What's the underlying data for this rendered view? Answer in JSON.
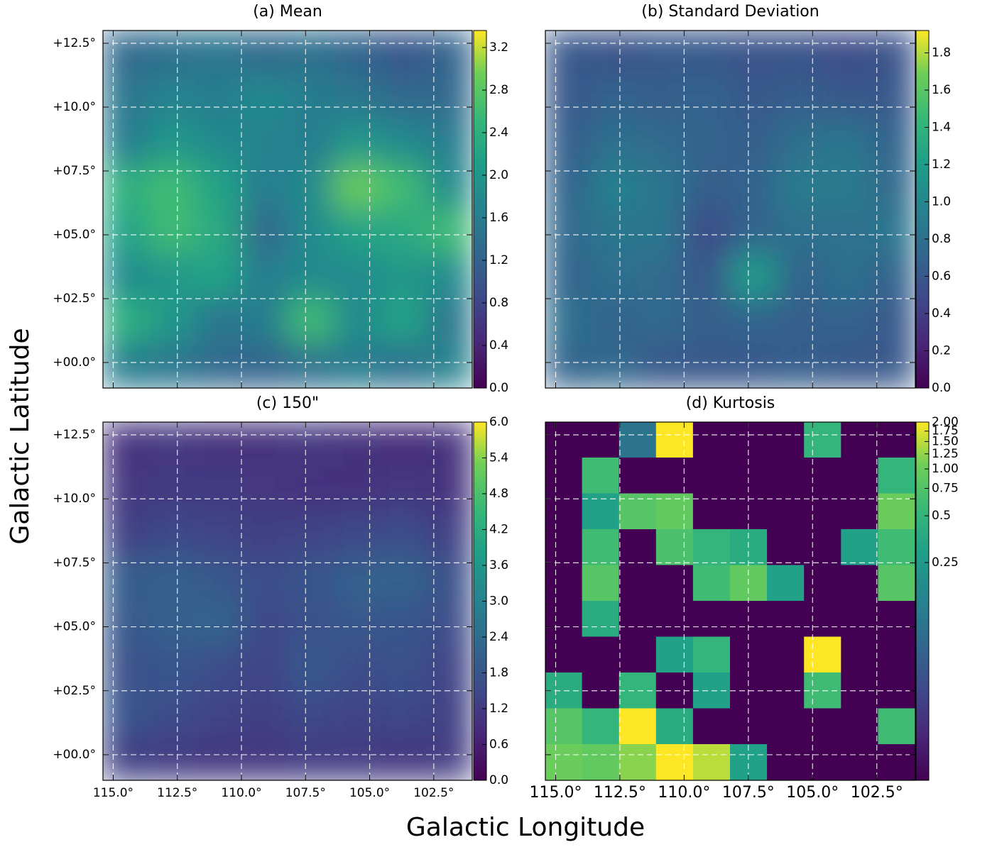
{
  "x_label": "Galactic Longitude",
  "y_label": "Galactic Latitude",
  "chart_data": [
    {
      "type": "heatmap",
      "title": "(a) Mean",
      "colormap": "viridis",
      "color_scale": "linear",
      "xlim": [
        115.4,
        101.0
      ],
      "ylim": [
        -1.0,
        13.0
      ],
      "xticks": [
        115.0,
        112.5,
        110.0,
        107.5,
        105.0,
        102.5
      ],
      "yticks": [
        {
          "value": 12.5,
          "label": "+12.5°"
        },
        {
          "value": 10.0,
          "label": "+10.0°"
        },
        {
          "value": 7.5,
          "label": "+07.5°"
        },
        {
          "value": 5.0,
          "label": "+05.0°"
        },
        {
          "value": 2.5,
          "label": "+02.5°"
        },
        {
          "value": 0.0,
          "label": "+00.0°"
        }
      ],
      "clim": [
        0.0,
        3.36
      ],
      "cticks": [
        {
          "value": 0.0,
          "label": "0.0"
        },
        0.4,
        0.8,
        1.2,
        1.6,
        {
          "value": 2.0,
          "label": "2.0"
        },
        2.4,
        2.8,
        3.2
      ],
      "z": [
        [
          1.3,
          1.4,
          1.5,
          1.3,
          1.4,
          1.2,
          1.0,
          1.2
        ],
        [
          1.5,
          1.7,
          1.6,
          1.8,
          1.6,
          1.5,
          1.3,
          1.3
        ],
        [
          1.6,
          2.0,
          1.8,
          1.7,
          1.6,
          2.0,
          1.8,
          1.6
        ],
        [
          2.4,
          2.6,
          2.2,
          1.6,
          1.8,
          2.9,
          2.6,
          1.8
        ],
        [
          2.2,
          2.6,
          2.3,
          1.3,
          1.8,
          2.2,
          2.3,
          2.6
        ],
        [
          1.8,
          2.0,
          2.2,
          1.6,
          1.8,
          1.8,
          2.0,
          1.8
        ],
        [
          2.4,
          2.0,
          1.5,
          1.6,
          2.6,
          1.8,
          2.2,
          1.5
        ],
        [
          1.6,
          1.5,
          1.3,
          1.2,
          1.4,
          1.6,
          1.4,
          1.7
        ]
      ]
    },
    {
      "type": "heatmap",
      "title": "(b) Standard Deviation",
      "colormap": "viridis",
      "color_scale": "linear",
      "xlim": [
        115.4,
        101.0
      ],
      "ylim": [
        -1.0,
        13.0
      ],
      "xticks": [
        115.0,
        112.5,
        110.0,
        107.5,
        105.0,
        102.5
      ],
      "yticks": [
        12.5,
        10.0,
        7.5,
        5.0,
        2.5,
        0.0
      ],
      "clim": [
        0.0,
        1.92
      ],
      "cticks": [
        {
          "value": 0.0,
          "label": "0.0"
        },
        0.2,
        0.4,
        0.6,
        0.8,
        {
          "value": 1.0,
          "label": "1.0"
        },
        1.2,
        1.4,
        1.6,
        1.8
      ],
      "z": [
        [
          0.6,
          0.55,
          0.6,
          0.6,
          0.55,
          0.55,
          0.5,
          0.55
        ],
        [
          0.6,
          0.7,
          0.65,
          0.7,
          0.6,
          0.65,
          0.6,
          0.6
        ],
        [
          0.65,
          0.8,
          0.75,
          0.7,
          0.65,
          0.8,
          0.85,
          0.7
        ],
        [
          0.7,
          0.95,
          0.85,
          0.65,
          0.7,
          0.9,
          0.9,
          0.75
        ],
        [
          0.75,
          0.85,
          0.85,
          0.5,
          0.7,
          0.8,
          0.8,
          0.85
        ],
        [
          0.7,
          0.8,
          0.75,
          0.6,
          1.2,
          0.7,
          0.8,
          0.7
        ],
        [
          0.8,
          0.7,
          0.75,
          0.65,
          0.7,
          0.65,
          0.7,
          0.6
        ],
        [
          0.7,
          0.75,
          0.6,
          0.6,
          0.6,
          0.65,
          0.6,
          0.6
        ]
      ]
    },
    {
      "type": "heatmap",
      "title": "(c) 150\"",
      "colormap": "viridis",
      "color_scale": "linear",
      "xlim": [
        115.4,
        101.0
      ],
      "ylim": [
        -1.0,
        13.0
      ],
      "xticks": [
        {
          "value": 115.0,
          "label": "115.0°"
        },
        {
          "value": 112.5,
          "label": "112.5°"
        },
        {
          "value": 110.0,
          "label": "110.0°"
        },
        {
          "value": 107.5,
          "label": "107.5°"
        },
        {
          "value": 105.0,
          "label": "105.0°"
        },
        {
          "value": 102.5,
          "label": "102.5°"
        }
      ],
      "yticks": [
        {
          "value": 12.5,
          "label": "+12.5°"
        },
        {
          "value": 10.0,
          "label": "+10.0°"
        },
        {
          "value": 7.5,
          "label": "+07.5°"
        },
        {
          "value": 5.0,
          "label": "+05.0°"
        },
        {
          "value": 2.5,
          "label": "+02.5°"
        },
        {
          "value": 0.0,
          "label": "+00.0°"
        }
      ],
      "clim": [
        0.0,
        6.0
      ],
      "cticks": [
        {
          "value": 0.0,
          "label": "0.0"
        },
        0.6,
        1.2,
        1.8,
        2.4,
        {
          "value": 3.0,
          "label": "3.0"
        },
        3.6,
        4.2,
        4.8,
        5.4,
        {
          "value": 6.0,
          "label": "6.0"
        }
      ],
      "z": [
        [
          1.0,
          1.1,
          1.0,
          1.0,
          1.1,
          1.0,
          0.9,
          1.0
        ],
        [
          1.1,
          1.2,
          1.2,
          1.1,
          1.0,
          1.0,
          1.1,
          1.0
        ],
        [
          1.3,
          1.5,
          1.4,
          1.3,
          1.4,
          1.5,
          1.6,
          1.3
        ],
        [
          2.0,
          2.1,
          1.9,
          1.6,
          1.8,
          2.1,
          2.2,
          1.7
        ],
        [
          1.9,
          2.1,
          2.2,
          1.5,
          1.7,
          1.9,
          1.8,
          1.6
        ],
        [
          1.7,
          1.8,
          1.6,
          1.4,
          1.9,
          1.6,
          1.7,
          1.4
        ],
        [
          1.8,
          1.6,
          1.4,
          1.3,
          1.5,
          1.4,
          1.5,
          1.3
        ],
        [
          1.3,
          1.2,
          1.1,
          1.1,
          1.2,
          1.2,
          1.1,
          1.2
        ]
      ]
    },
    {
      "type": "heatmap",
      "title": "(d) Kurtosis",
      "colormap": "viridis",
      "color_scale": "asinh",
      "asinh_a": 0.02,
      "xlim": [
        115.4,
        101.0
      ],
      "ylim": [
        -1.0,
        13.0
      ],
      "xticks": [
        {
          "value": 115.0,
          "label": "115.0°"
        },
        {
          "value": 112.5,
          "label": "112.5°"
        },
        {
          "value": 110.0,
          "label": "110.0°"
        },
        {
          "value": 107.5,
          "label": "107.5°"
        },
        {
          "value": 105.0,
          "label": "105.0°"
        },
        {
          "value": 102.5,
          "label": "102.5°"
        }
      ],
      "yticks": [
        12.5,
        10.0,
        7.5,
        5.0,
        2.5,
        0.0
      ],
      "clim": [
        0.0,
        2.0
      ],
      "cticks": [
        0.25,
        0.5,
        {
          "value": 0.75,
          "label": "0.75"
        },
        {
          "value": 1.0,
          "label": "1.00"
        },
        1.25,
        {
          "value": 1.5,
          "label": "1.50"
        },
        1.75,
        {
          "value": 2.0,
          "label": "2.00"
        }
      ],
      "z": [
        [
          0,
          0,
          0.1,
          2,
          0,
          0,
          0,
          0.5,
          0,
          0
        ],
        [
          0,
          0.6,
          0,
          0,
          0,
          0,
          0,
          0,
          0,
          0.5
        ],
        [
          0,
          0.3,
          0.8,
          0.9,
          0,
          0,
          0,
          0,
          0,
          1.0
        ],
        [
          0,
          0.6,
          0,
          0.7,
          0.5,
          0.4,
          0,
          0,
          0.3,
          0.6
        ],
        [
          0,
          0.8,
          0,
          0,
          0.6,
          0.9,
          0.3,
          0,
          0,
          0.8
        ],
        [
          0,
          0.4,
          0,
          0,
          0,
          0,
          0,
          0,
          0,
          0
        ],
        [
          0,
          0,
          0,
          0.3,
          0.5,
          0,
          0,
          2,
          0,
          0
        ],
        [
          0.4,
          0,
          0.5,
          0,
          0.3,
          0,
          0,
          0.6,
          0,
          0
        ],
        [
          0.8,
          0.5,
          2,
          0.4,
          0,
          0,
          0,
          0,
          0,
          0.6
        ],
        [
          1.0,
          0.9,
          1.2,
          2,
          1.5,
          0.3,
          0,
          0,
          0,
          0
        ]
      ]
    }
  ]
}
